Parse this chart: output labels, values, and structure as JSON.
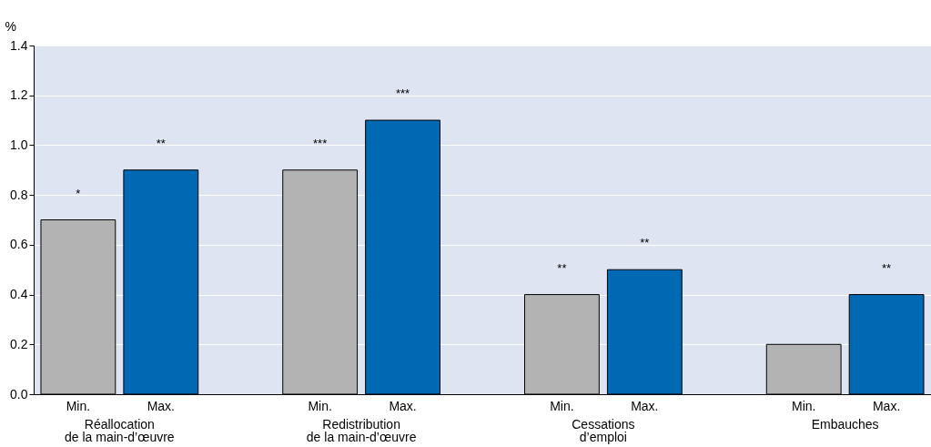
{
  "chart_data": {
    "type": "bar",
    "ylabel": "%",
    "categories": [
      "Réallocation\nde la main-d’œuvre",
      "Redistribution\nde la main-d’œuvre",
      "Cessations\nd’emploi",
      "Embauches"
    ],
    "series": [
      {
        "name": "Min.",
        "color": "#b3b3b3",
        "values": [
          0.7,
          0.9,
          0.4,
          0.2
        ],
        "value_labels": [
          "*",
          "***",
          "**",
          null
        ]
      },
      {
        "name": "Max.",
        "color": "#0069b4",
        "values": [
          0.9,
          1.1,
          0.5,
          0.4
        ],
        "value_labels": [
          "**",
          "***",
          "**",
          "**"
        ]
      }
    ],
    "ylim": [
      0,
      1.4
    ],
    "yticks": [
      {
        "value": 0,
        "label": "0.0"
      },
      {
        "value": 0.2,
        "label": "0.2"
      },
      {
        "value": 0.4,
        "label": "0.4"
      },
      {
        "value": 0.6,
        "label": "0.6"
      },
      {
        "value": 0.8,
        "label": "0.8"
      },
      {
        "value": 1,
        "label": "1.0"
      },
      {
        "value": 1.2,
        "label": "1.2"
      },
      {
        "value": 1.4,
        "label": "1.4"
      }
    ],
    "grid": "y",
    "legend": false
  }
}
